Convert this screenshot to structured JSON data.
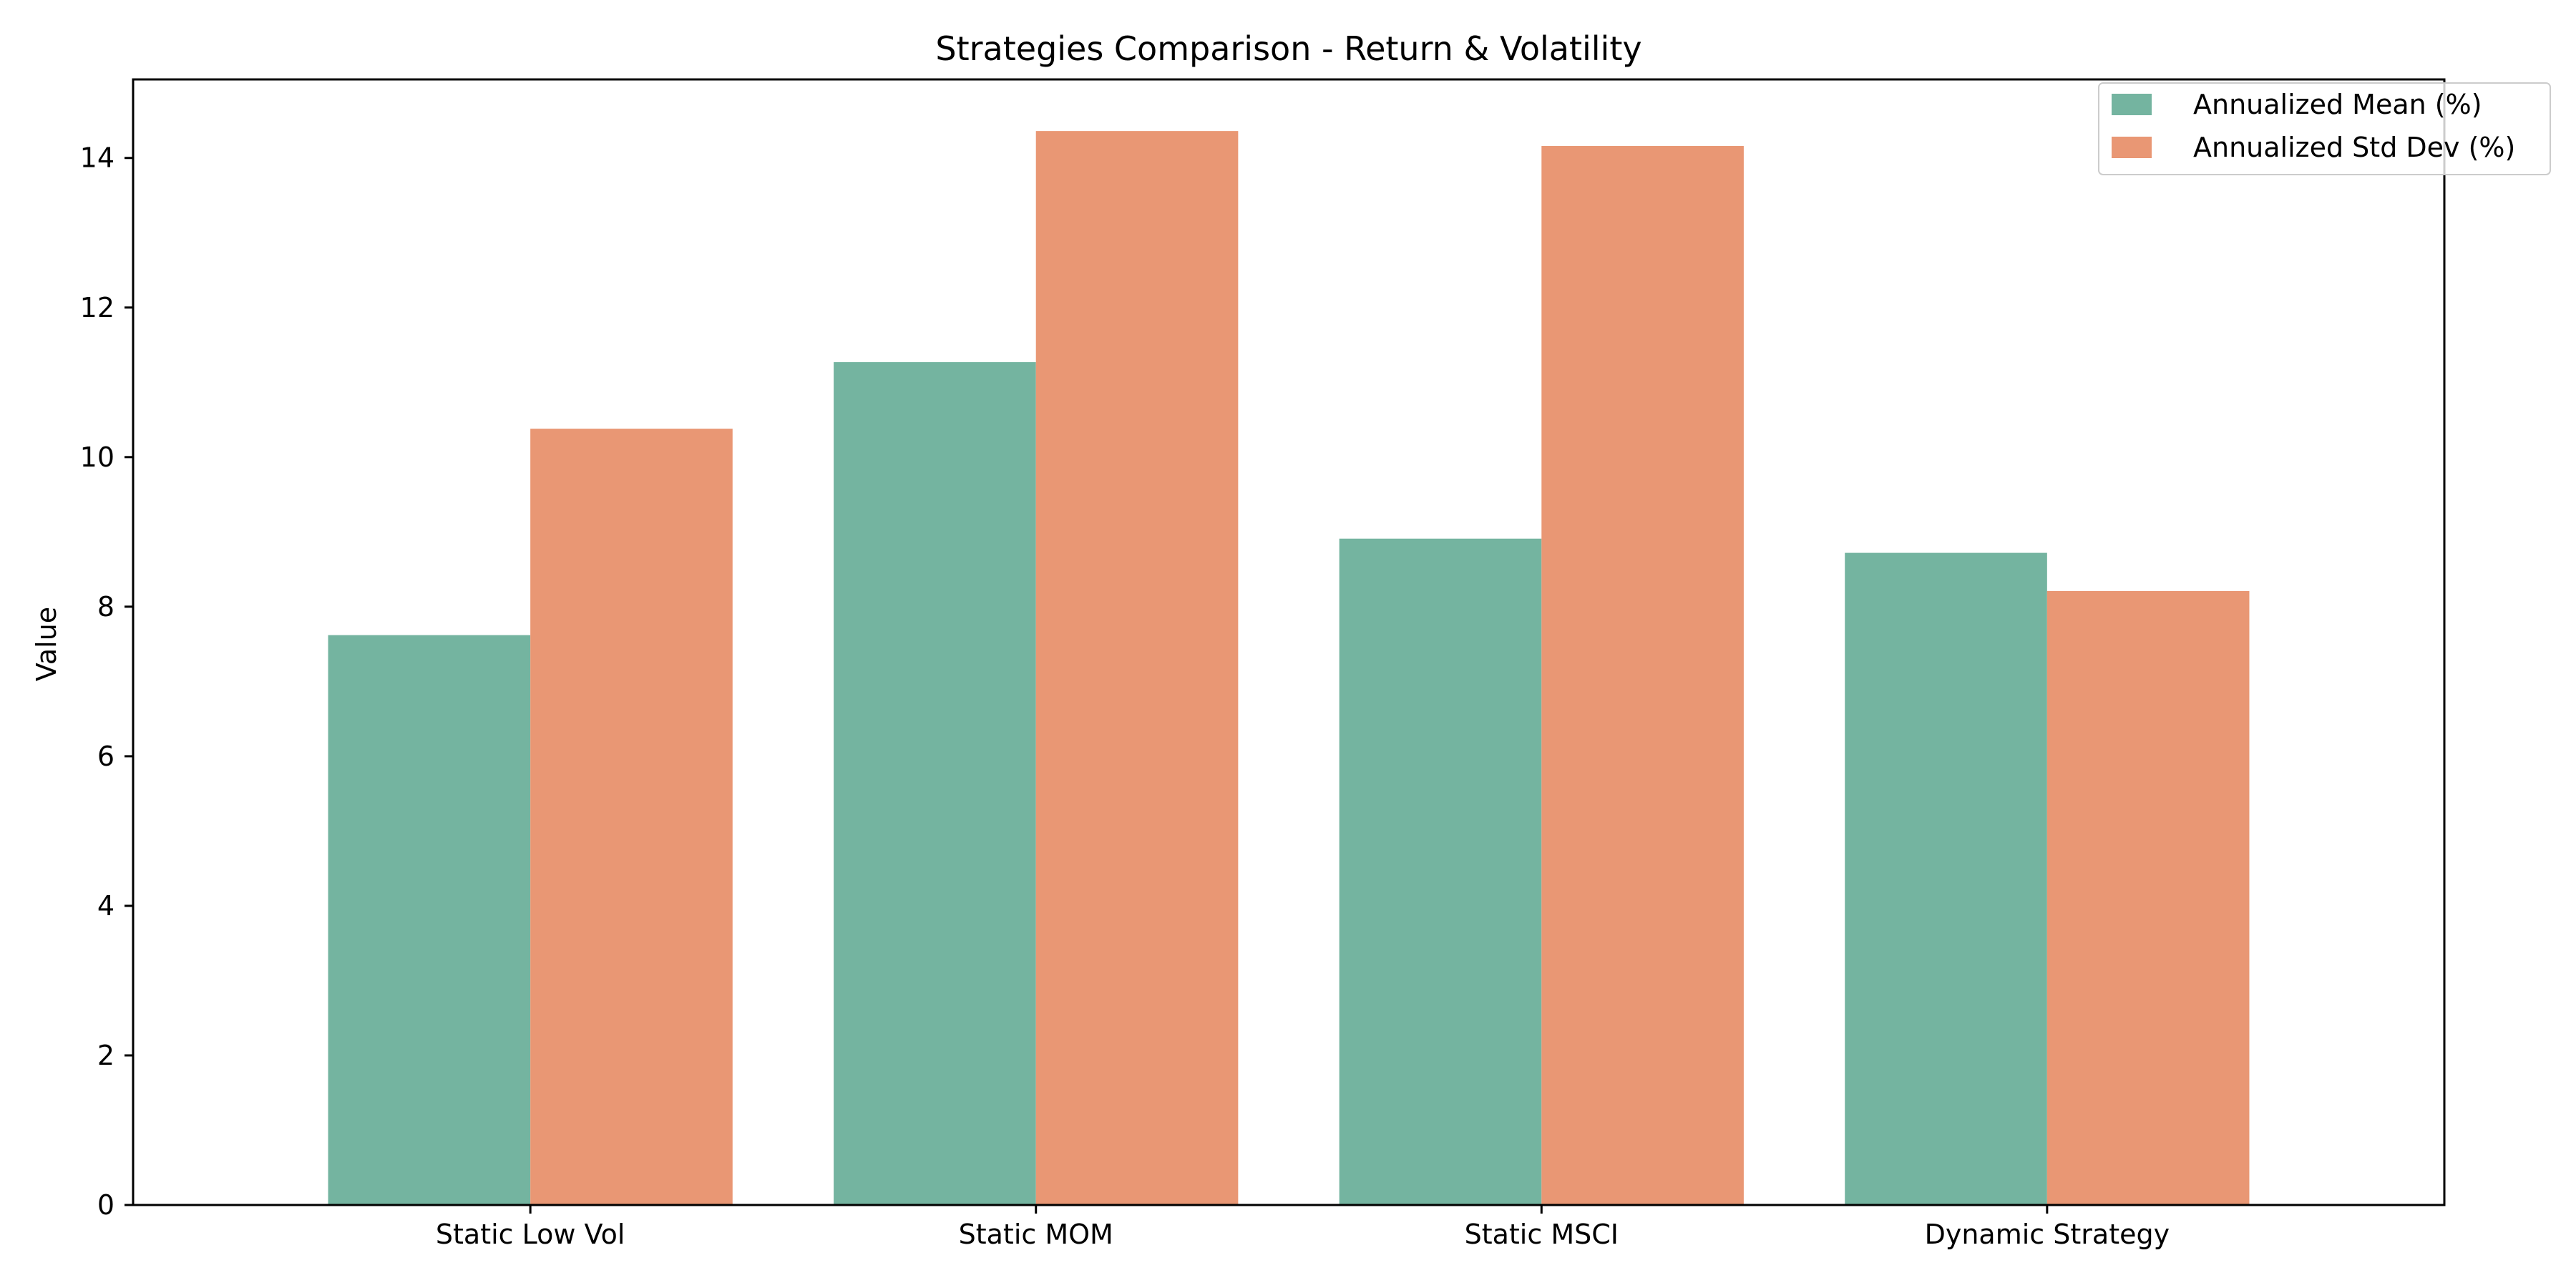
{
  "chart_data": {
    "type": "bar",
    "title": "Strategies Comparison - Return & Volatility",
    "xlabel": "",
    "ylabel": "Value",
    "categories": [
      "Static Low Vol",
      "Static MOM",
      "Static MSCI",
      "Dynamic Strategy"
    ],
    "series": [
      {
        "name": "Annualized Mean (%)",
        "values": [
          7.62,
          11.27,
          8.91,
          8.72
        ],
        "color": "#74b4a0"
      },
      {
        "name": "Annualized Std Dev (%)",
        "values": [
          10.38,
          14.36,
          14.16,
          8.21
        ],
        "color": "#e99774"
      }
    ],
    "ylim": [
      0,
      15.05
    ],
    "yticks": [
      0,
      2,
      4,
      6,
      8,
      10,
      12,
      14
    ],
    "grid": false,
    "legend_position": "top-right"
  }
}
